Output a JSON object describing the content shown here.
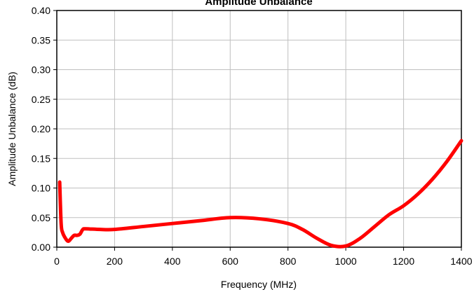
{
  "chart_data": {
    "type": "line",
    "title": "Amplitude Unbalance",
    "xlabel": "Frequency (MHz)",
    "ylabel": "Amplitude Unbalance (dB)",
    "xlim": [
      0,
      1400
    ],
    "ylim": [
      0,
      0.4
    ],
    "x_ticks": [
      0,
      200,
      400,
      600,
      800,
      1000,
      1200,
      1400
    ],
    "y_ticks": [
      0.0,
      0.05,
      0.1,
      0.15,
      0.2,
      0.25,
      0.3,
      0.35,
      0.4
    ],
    "x_tick_labels": [
      "0",
      "200",
      "400",
      "600",
      "800",
      "1000",
      "1200",
      "1400"
    ],
    "y_tick_labels": [
      "0.00",
      "0.05",
      "0.10",
      "0.15",
      "0.20",
      "0.25",
      "0.30",
      "0.35",
      "0.40"
    ],
    "grid": true,
    "series": [
      {
        "color": "#ff0000",
        "x": [
          10,
          15,
          20,
          30,
          40,
          50,
          60,
          70,
          80,
          90,
          100,
          150,
          200,
          300,
          400,
          500,
          600,
          700,
          800,
          850,
          900,
          950,
          1000,
          1050,
          1100,
          1150,
          1200,
          1250,
          1300,
          1350,
          1400
        ],
        "y": [
          0.11,
          0.04,
          0.025,
          0.015,
          0.01,
          0.015,
          0.02,
          0.02,
          0.022,
          0.03,
          0.031,
          0.03,
          0.03,
          0.035,
          0.04,
          0.045,
          0.05,
          0.048,
          0.04,
          0.03,
          0.015,
          0.003,
          0.002,
          0.015,
          0.035,
          0.055,
          0.07,
          0.09,
          0.115,
          0.145,
          0.18
        ]
      }
    ]
  }
}
